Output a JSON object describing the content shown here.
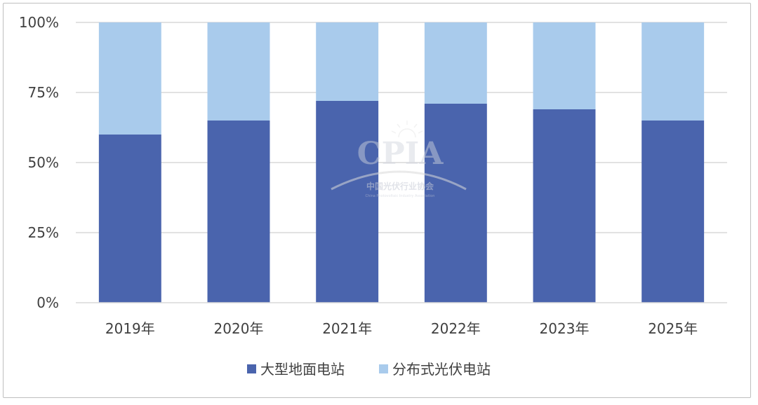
{
  "chart_data": {
    "type": "bar",
    "stacked": true,
    "categories": [
      "2019年",
      "2020年",
      "2021年",
      "2022年",
      "2023年",
      "2025年"
    ],
    "series": [
      {
        "name": "大型地面电站",
        "values": [
          60,
          65,
          72,
          71,
          69,
          65
        ],
        "color": "#4a64ad"
      },
      {
        "name": "分布式光伏电站",
        "values": [
          40,
          35,
          28,
          29,
          31,
          35
        ],
        "color": "#a9cbec"
      }
    ],
    "y_ticks": [
      "0%",
      "25%",
      "50%",
      "75%",
      "100%"
    ],
    "y_tick_values": [
      0,
      25,
      50,
      75,
      100
    ],
    "ylim": [
      0,
      100
    ],
    "grid": true,
    "legend_position": "bottom"
  },
  "watermark": {
    "logo_text": "CPIA",
    "org_name_cn": "中国光伏行业协会",
    "org_name_en": "China Photovoltaic Industry Association"
  }
}
